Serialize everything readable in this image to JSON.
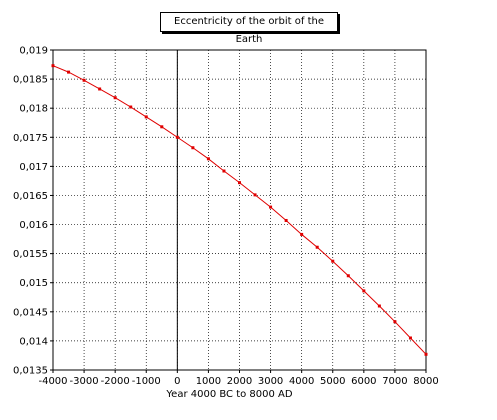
{
  "chart_data": {
    "type": "line",
    "title": "Eccentricity of the orbit of the Earth",
    "xlabel": "Year 4000 BC to 8000 AD",
    "ylabel": "",
    "xlim": [
      -4000,
      8000
    ],
    "ylim": [
      0.0135,
      0.019
    ],
    "grid": true,
    "x_ticks": [
      "-4000",
      "-3000",
      "-2000",
      "-1000",
      "0",
      "1000",
      "2000",
      "3000",
      "4000",
      "5000",
      "6000",
      "7000",
      "8000"
    ],
    "y_ticks": [
      "0,0135",
      "0,014",
      "0,0145",
      "0,015",
      "0,0155",
      "0,016",
      "0,0165",
      "0,017",
      "0,0175",
      "0,018",
      "0,0185",
      "0,019"
    ],
    "x": [
      -4000,
      -3500,
      -3000,
      -2500,
      -2000,
      -1500,
      -1000,
      -500,
      0,
      500,
      1000,
      1500,
      2000,
      2500,
      3000,
      3500,
      4000,
      4500,
      5000,
      5500,
      6000,
      6500,
      7000,
      7500,
      8000
    ],
    "series": [
      {
        "name": "",
        "color": "#e00000",
        "values": [
          0.01873,
          0.01862,
          0.01848,
          0.01833,
          0.01818,
          0.01802,
          0.01785,
          0.01768,
          0.0175,
          0.01732,
          0.01713,
          0.01692,
          0.01672,
          0.01651,
          0.0163,
          0.01607,
          0.01583,
          0.01561,
          0.01537,
          0.01512,
          0.01486,
          0.0146,
          0.01433,
          0.01405,
          0.01377
        ]
      }
    ]
  }
}
